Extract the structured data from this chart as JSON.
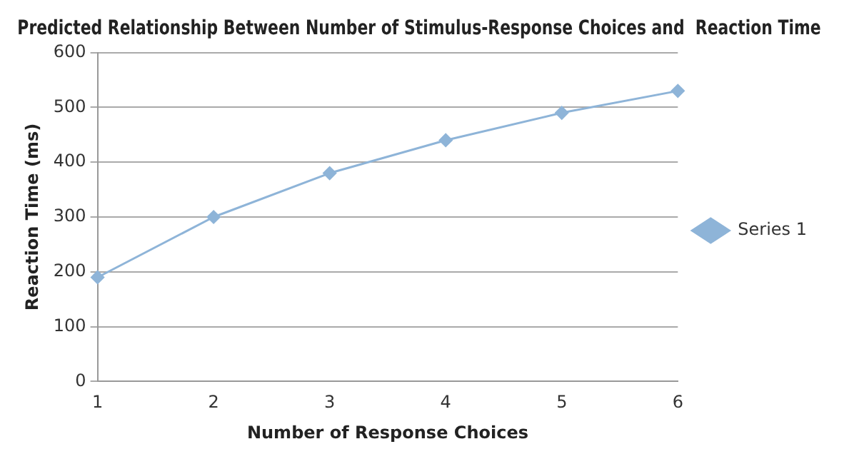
{
  "chart_data": {
    "type": "line",
    "title": "Predicted Relationship Between Number of Stimulus-Response Choices and  Reaction Time",
    "xlabel": "Number of Response Choices",
    "ylabel": "Reaction Time (ms)",
    "categories": [
      "1",
      "2",
      "3",
      "4",
      "5",
      "6"
    ],
    "series": [
      {
        "name": "Series 1",
        "color": "#8eb4d8",
        "values": [
          190,
          300,
          380,
          440,
          490,
          530
        ]
      }
    ],
    "ylim": [
      0,
      600
    ],
    "yticks": [
      0,
      100,
      200,
      300,
      400,
      500,
      600
    ],
    "grid": "y",
    "legend": "right",
    "marker": "diamond",
    "line_style": "solid"
  }
}
